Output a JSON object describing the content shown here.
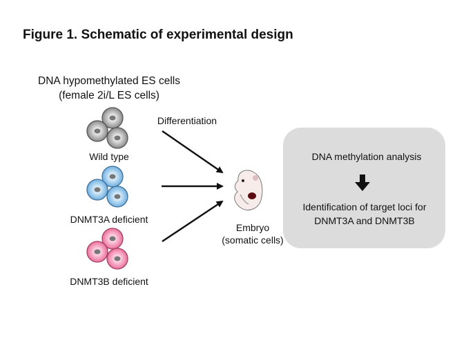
{
  "title": "Figure 1. Schematic of experimental design",
  "source": {
    "line1": "DNA hypomethylated ES cells",
    "line2": "(female 2i/L ES cells)"
  },
  "arrow_label": "Differentiation",
  "cell_groups": [
    {
      "label": "Wild type",
      "color": "#9a9a9a",
      "edge": "#555555"
    },
    {
      "label": "DNMT3A deficient",
      "color": "#8ec3e8",
      "edge": "#3f6f99"
    },
    {
      "label": "DNMT3B deficient",
      "color": "#f28bb0",
      "edge": "#a3405f"
    }
  ],
  "embryo": {
    "line1": "Embryo",
    "line2": "(somatic cells)"
  },
  "analysis_box": {
    "step1": "DNA methylation analysis",
    "step2_line1": "Identification of target loci for",
    "step2_line2": "DNMT3A and DNMT3B",
    "fill": "#dcdcdc"
  }
}
